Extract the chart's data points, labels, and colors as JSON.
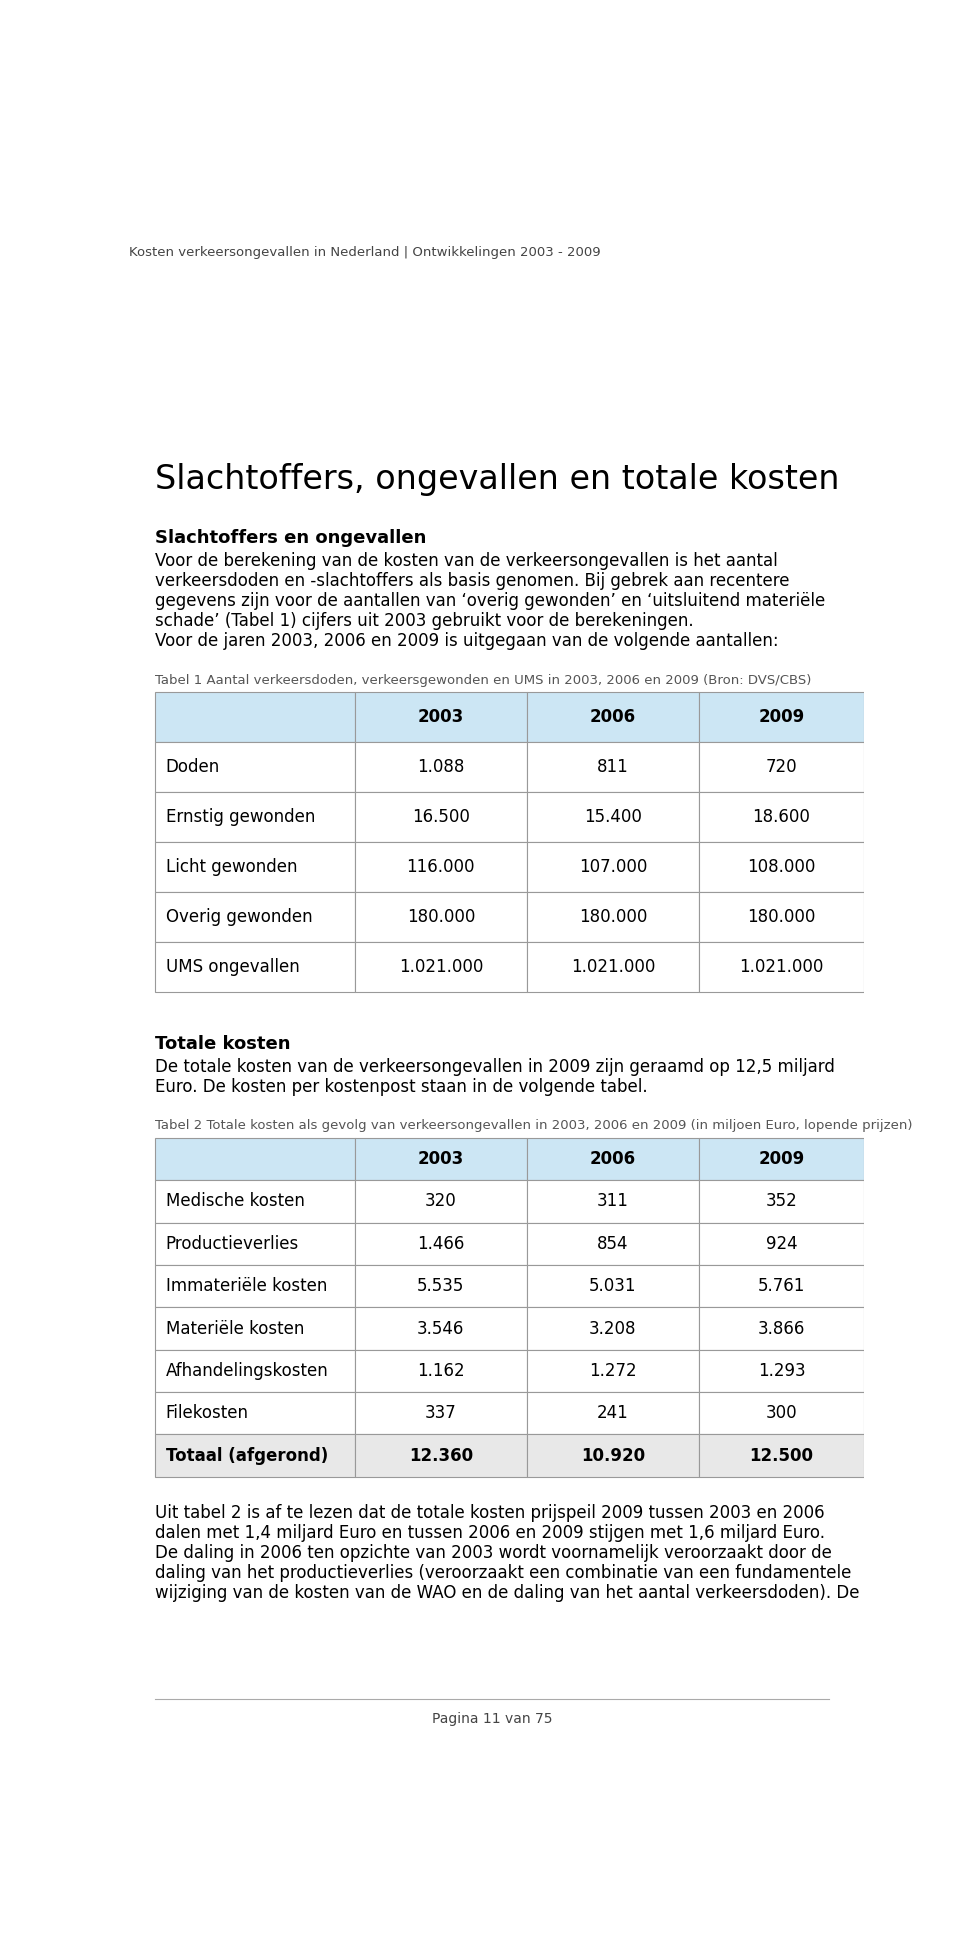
{
  "page_header": "Kosten verkeersongevallen in Nederland | Ontwikkelingen 2003 - 2009",
  "section1_title": "Slachtoffers, ongevallen en totale kosten",
  "section2_title": "Slachtoffers en ongevallen",
  "section2_body_lines": [
    "Voor de berekening van de kosten van de verkeersongevallen is het aantal",
    "verkeersdoden en -slachtoffers als basis genomen. Bij gebrek aan recentere",
    "gegevens zijn voor de aantallen van ‘overig gewonden’ en ‘uitsluitend materiële",
    "schade’ (Tabel 1) cijfers uit 2003 gebruikt voor de berekeningen.",
    "Voor de jaren 2003, 2006 en 2009 is uitgegaan van de volgende aantallen:"
  ],
  "table1_caption": "Tabel 1 Aantal verkeersdoden, verkeersgewonden en UMS in 2003, 2006 en 2009 (Bron: DVS/CBS)",
  "table1_headers": [
    "",
    "2003",
    "2006",
    "2009"
  ],
  "table1_rows": [
    [
      "Doden",
      "1.088",
      "811",
      "720"
    ],
    [
      "Ernstig gewonden",
      "16.500",
      "15.400",
      "18.600"
    ],
    [
      "Licht gewonden",
      "116.000",
      "107.000",
      "108.000"
    ],
    [
      "Overig gewonden",
      "180.000",
      "180.000",
      "180.000"
    ],
    [
      "UMS ongevallen",
      "1.021.000",
      "1.021.000",
      "1.021.000"
    ]
  ],
  "section3_title": "Totale kosten",
  "section3_body_lines": [
    "De totale kosten van de verkeersongevallen in 2009 zijn geraamd op 12,5 miljard",
    "Euro. De kosten per kostenpost staan in de volgende tabel."
  ],
  "table2_caption": "Tabel 2 Totale kosten als gevolg van verkeersongevallen in 2003, 2006 en 2009 (in miljoen Euro, lopende prijzen)",
  "table2_headers": [
    "",
    "2003",
    "2006",
    "2009"
  ],
  "table2_rows": [
    [
      "Medische kosten",
      "320",
      "311",
      "352"
    ],
    [
      "Productieverlies",
      "1.466",
      "854",
      "924"
    ],
    [
      "Immateriële kosten",
      "5.535",
      "5.031",
      "5.761"
    ],
    [
      "Materiële kosten",
      "3.546",
      "3.208",
      "3.866"
    ],
    [
      "Afhandelingskosten",
      "1.162",
      "1.272",
      "1.293"
    ],
    [
      "Filekosten",
      "337",
      "241",
      "300"
    ],
    [
      "Totaal (afgerond)",
      "12.360",
      "10.920",
      "12.500"
    ]
  ],
  "section4_body_lines": [
    "Uit tabel 2 is af te lezen dat de totale kosten prijspeil 2009 tussen 2003 en 2006",
    "dalen met 1,4 miljard Euro en tussen 2006 en 2009 stijgen met 1,6 miljard Euro.",
    "De daling in 2006 ten opzichte van 2003 wordt voornamelijk veroorzaakt door de",
    "daling van het productieverlies (veroorzaakt een combinatie van een fundamentele",
    "wijziging van de kosten van de WAO en de daling van het aantal verkeersdoden). De"
  ],
  "page_footer": "Pagina 11 van 75",
  "bg_color": "#ffffff",
  "header_bg": "#cce6f4",
  "table_border_color": "#999999",
  "last_row_bg": "#e8e8e8"
}
